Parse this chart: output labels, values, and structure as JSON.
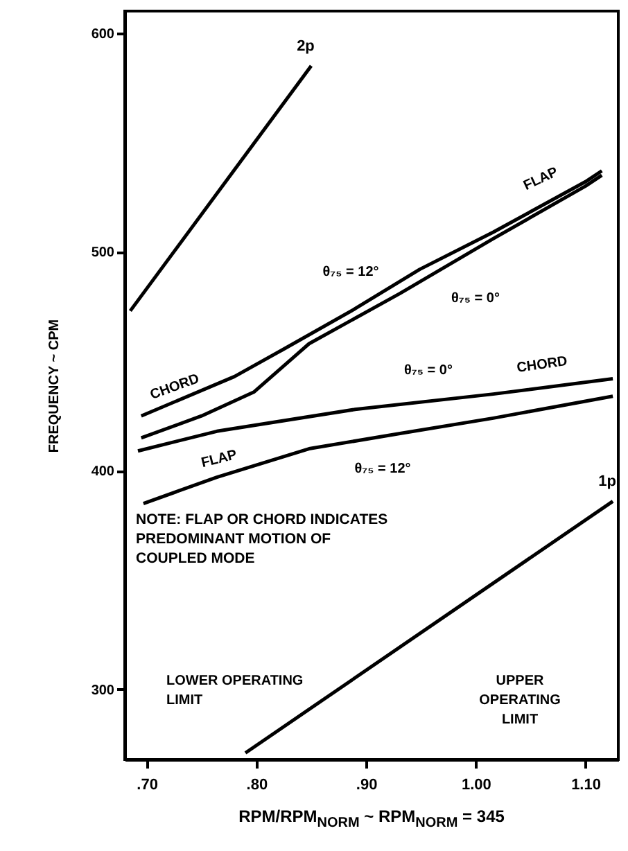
{
  "chart_data": {
    "type": "line",
    "xlabel": "RPM/RPM$_{NORM}$ ~ RPM$_{NORM}$ = 345",
    "ylabel": "FREQUENCY ~ CPM",
    "xlim": [
      0.68,
      1.13
    ],
    "ylim": [
      268,
      610
    ],
    "xticks": [
      {
        "value": 0.7,
        "label": ".70"
      },
      {
        "value": 0.8,
        "label": ".80"
      },
      {
        "value": 0.9,
        "label": ".90"
      },
      {
        "value": 1.0,
        "label": "1.00"
      },
      {
        "value": 1.1,
        "label": "1.10"
      }
    ],
    "yticks": [
      300,
      400,
      500,
      600
    ],
    "line_style": "solid",
    "series": [
      {
        "name": "2p",
        "color": "#000000",
        "x": [
          0.685,
          0.85
        ],
        "values": [
          473,
          585
        ]
      },
      {
        "name": "1p",
        "color": "#000000",
        "x": [
          0.79,
          1.125
        ],
        "values": [
          271,
          386
        ]
      },
      {
        "color": "#000000",
        "x": [
          0.695,
          0.78,
          0.823,
          0.89,
          0.949,
          1.016,
          1.1,
          1.115
        ],
        "values": [
          425,
          443,
          455,
          474,
          492,
          509,
          532,
          537
        ]
      },
      {
        "color": "#000000",
        "x": [
          0.695,
          0.75,
          0.798,
          0.848,
          0.931,
          1.016,
          1.1,
          1.115
        ],
        "values": [
          415,
          425,
          436,
          458,
          481,
          506,
          530,
          535
        ]
      },
      {
        "color": "#000000",
        "x": [
          0.692,
          0.764,
          0.89,
          1.016,
          1.125
        ],
        "values": [
          409,
          418,
          428,
          435,
          442
        ]
      },
      {
        "color": "#000000",
        "x": [
          0.697,
          0.764,
          0.848,
          0.931,
          1.016,
          1.125
        ],
        "values": [
          385,
          397,
          410,
          417,
          424,
          434
        ]
      }
    ],
    "annotations": [
      "NOTE:  FLAP OR CHORD INDICATES\n            PREDOMINANT MOTION OF\n            COUPLED MODE",
      "CHORD",
      "FLAP",
      "θ₇₅ = 12°",
      "θ₇₅ = 0°",
      "θ₇₅ = 0°",
      "CHORD",
      "FLAP",
      "θ₇₅ = 12°",
      "LOWER OPERATING\nLIMIT",
      "UPPER\nOPERATING\nLIMIT"
    ]
  }
}
